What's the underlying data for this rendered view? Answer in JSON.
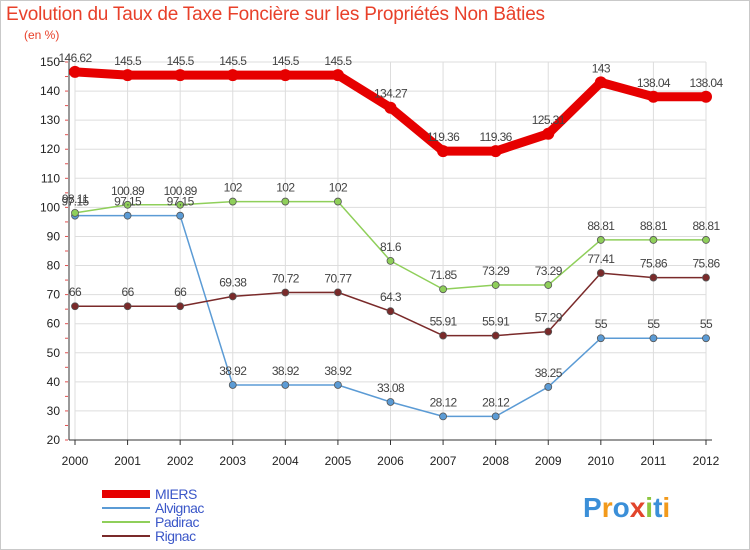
{
  "chart_data": {
    "type": "line",
    "title": "Evolution du Taux de Taxe Foncière sur les Propriétés Non Bâties",
    "unit_label": "(en %)",
    "x": [
      "2000",
      "2001",
      "2002",
      "2003",
      "2004",
      "2005",
      "2006",
      "2007",
      "2008",
      "2009",
      "2010",
      "2011",
      "2012"
    ],
    "ylim": [
      20,
      150
    ],
    "yticks": [
      20,
      30,
      40,
      50,
      60,
      70,
      80,
      90,
      100,
      110,
      120,
      130,
      140,
      150
    ],
    "grid": true,
    "legend_position": "bottom-left",
    "series": [
      {
        "name": "MIERS",
        "color": "#e60000",
        "thick": true,
        "values": [
          146.62,
          145.5,
          145.5,
          145.5,
          145.5,
          145.5,
          134.27,
          119.36,
          119.36,
          125.31,
          143,
          138.04,
          138.04
        ],
        "labels": [
          "146.62",
          "145.5",
          "145.5",
          "145.5",
          "145.5",
          "145.5",
          "134.27",
          "119.36",
          "119.36",
          "125.31",
          "143",
          "138.04",
          "138.04"
        ]
      },
      {
        "name": "Alvignac",
        "color": "#5b9bd5",
        "thick": false,
        "values": [
          97.15,
          97.15,
          97.15,
          38.92,
          38.92,
          38.92,
          33.08,
          28.12,
          28.12,
          38.25,
          55,
          55,
          55
        ],
        "labels": [
          "97.15",
          "97.15",
          "97.15",
          "38.92",
          "38.92",
          "38.92",
          "33.08",
          "28.12",
          "28.12",
          "38.25",
          "55",
          "55",
          "55"
        ]
      },
      {
        "name": "Padirac",
        "color": "#8fcf5a",
        "thick": false,
        "values": [
          98.11,
          100.89,
          100.89,
          102,
          102,
          102,
          81.6,
          71.85,
          73.29,
          73.29,
          88.81,
          88.81,
          88.81
        ],
        "labels": [
          "98.11",
          "100.89",
          "100.89",
          "102",
          "102",
          "102",
          "81.6",
          "71.85",
          "73.29",
          "73.29",
          "88.81",
          "88.81",
          "88.81"
        ]
      },
      {
        "name": "Rignac",
        "color": "#7a2a2a",
        "thick": false,
        "values": [
          66,
          66,
          66,
          69.38,
          70.72,
          70.77,
          64.3,
          55.91,
          55.91,
          57.29,
          77.41,
          75.86,
          75.86
        ],
        "labels": [
          "66",
          "66",
          "66",
          "69.38",
          "70.72",
          "70.77",
          "64.3",
          "55.91",
          "55.91",
          "57.29",
          "77.41",
          "75.86",
          "75.86"
        ]
      }
    ]
  },
  "brand": {
    "name": "Proxiti"
  }
}
